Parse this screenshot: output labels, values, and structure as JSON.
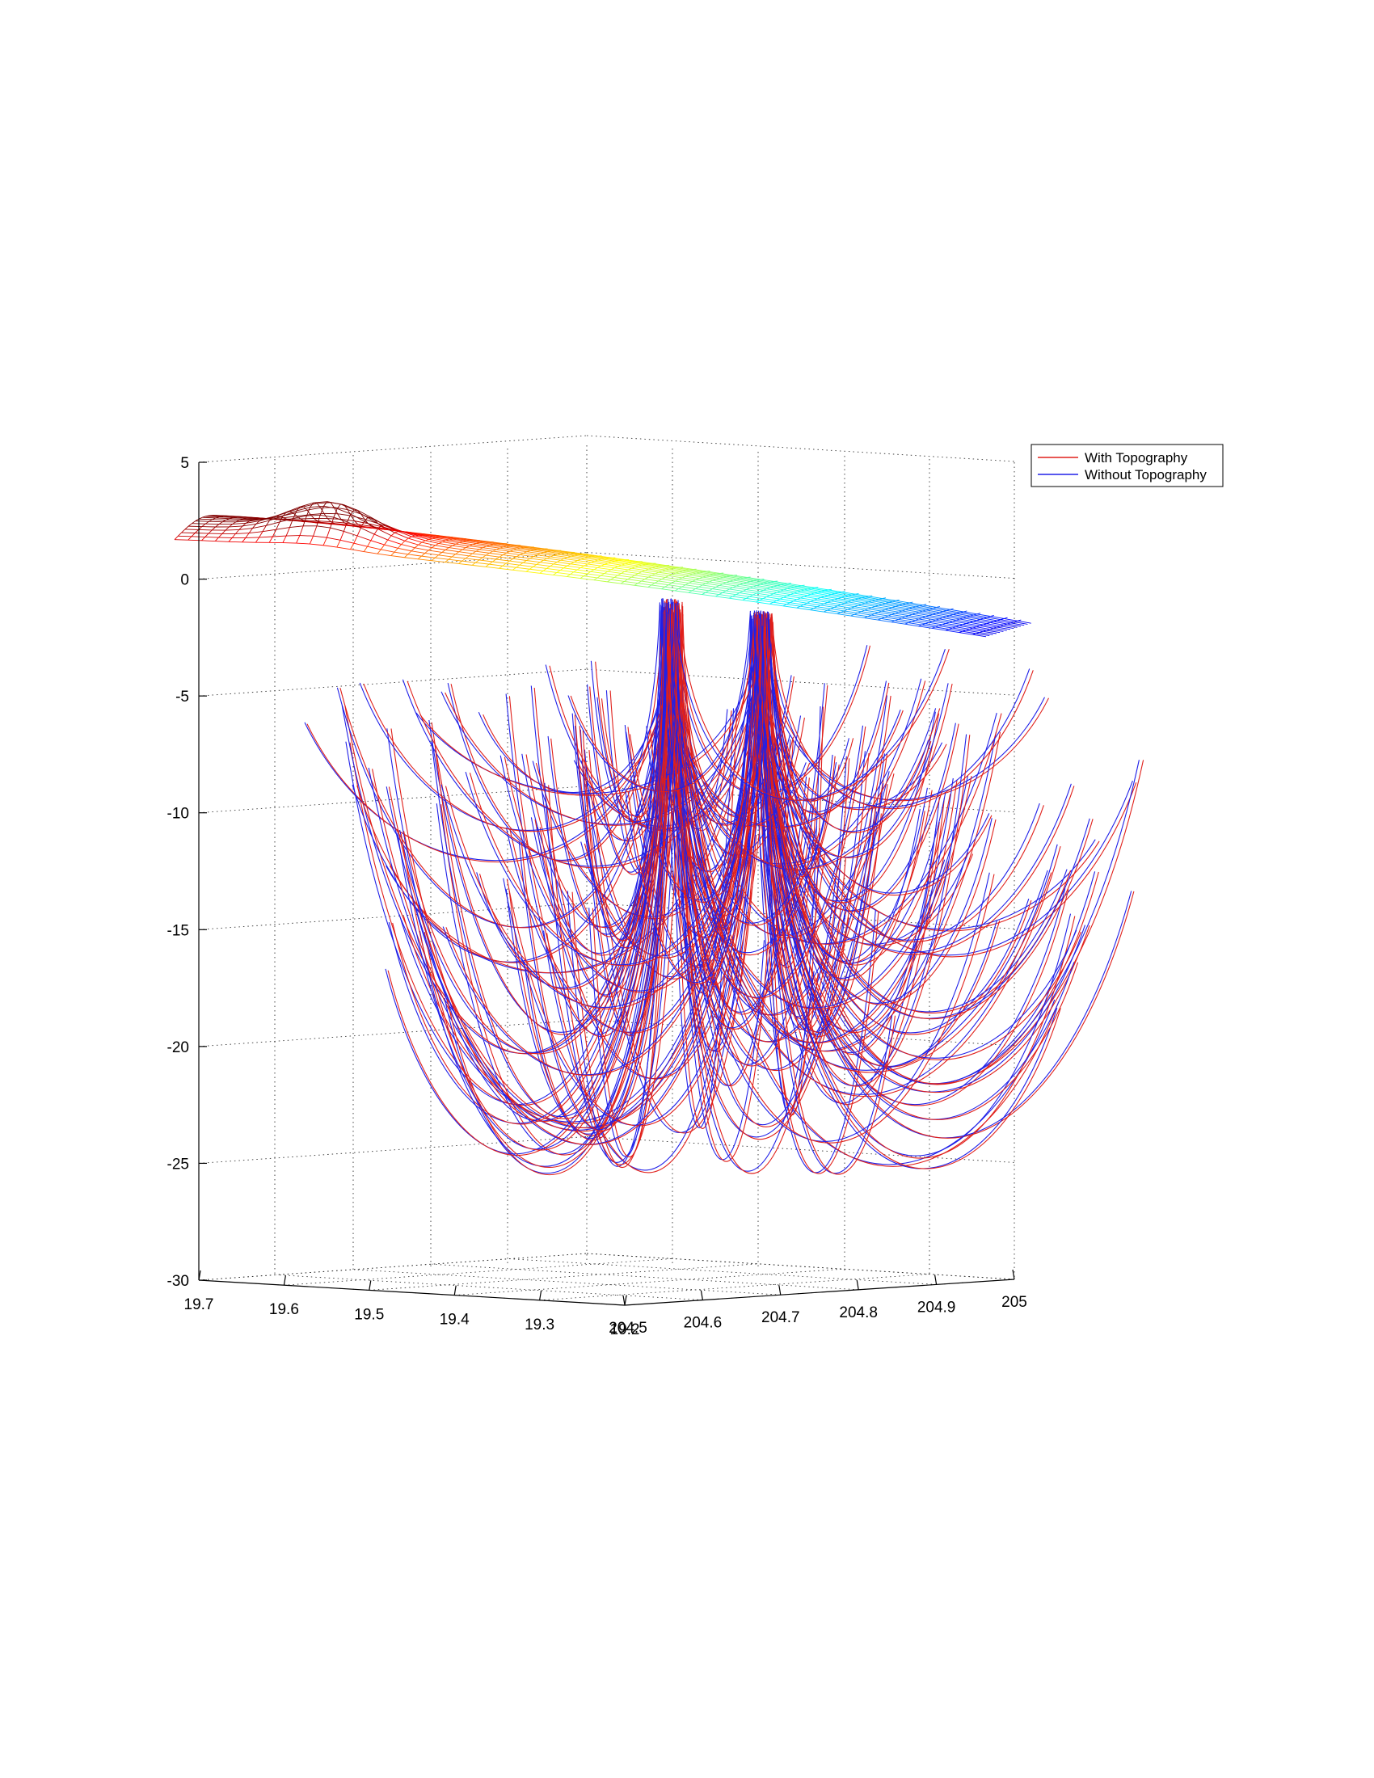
{
  "chart_data": {
    "type": "line",
    "view": "3d",
    "grid": true,
    "legend_position": "top-right",
    "legend": [
      {
        "name": "With Topography",
        "color": "#e0201b"
      },
      {
        "name": "Without Topography",
        "color": "#2020e8"
      }
    ],
    "z_axis": {
      "ticks": [
        "5",
        "0",
        "-5",
        "-10",
        "-15",
        "-20",
        "-25",
        "-30"
      ],
      "range": [
        -30,
        5
      ]
    },
    "lat_axis": {
      "ticks": [
        "19.7",
        "19.6",
        "19.5",
        "19.4",
        "19.3",
        "19.2"
      ],
      "range": [
        19.2,
        19.7
      ]
    },
    "lon_axis": {
      "ticks": [
        "204.5",
        "204.6",
        "204.7",
        "204.8",
        "204.9",
        "205"
      ],
      "range": [
        204.5,
        205
      ]
    },
    "surface": {
      "colormap": "jet",
      "z_range": [
        -3,
        2.5
      ]
    },
    "series": [
      {
        "name": "With Topography",
        "color": "#e0201b"
      },
      {
        "name": "Without Topography",
        "color": "#2020e8"
      }
    ]
  }
}
